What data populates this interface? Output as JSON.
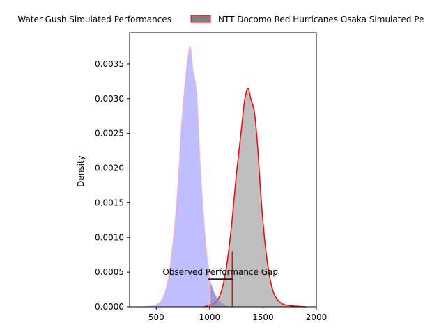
{
  "chart_data": {
    "type": "area",
    "title": "",
    "xlabel": "",
    "ylabel": "Density",
    "xlim": [
      250,
      2000
    ],
    "ylim": [
      0,
      0.00395
    ],
    "x_ticks": [
      500,
      1000,
      1500,
      2000
    ],
    "y_ticks": [
      0.0,
      0.0005,
      0.001,
      0.0015,
      0.002,
      0.0025,
      0.003,
      0.0035
    ],
    "x_tick_labels": [
      "500",
      "1000",
      "1500",
      "2000"
    ],
    "y_tick_labels": [
      "0.0000",
      "0.0005",
      "0.0010",
      "0.0015",
      "0.0020",
      "0.0025",
      "0.0030",
      "0.0035"
    ],
    "grid": false,
    "legend_position": "top-center",
    "series": [
      {
        "name": "Water Gush Simulated Performances",
        "legend_label": "Water Gush Simulated Performances",
        "fill_color": "#bfbfff",
        "line_color": "#ffb6c1",
        "points": [
          [
            350,
            0.0
          ],
          [
            450,
            1e-05
          ],
          [
            500,
            3e-05
          ],
          [
            550,
            0.0001
          ],
          [
            600,
            0.00032
          ],
          [
            650,
            0.00085
          ],
          [
            700,
            0.0017
          ],
          [
            730,
            0.0025
          ],
          [
            750,
            0.0029
          ],
          [
            780,
            0.0034
          ],
          [
            800,
            0.00365
          ],
          [
            812,
            0.00375
          ],
          [
            825,
            0.0037
          ],
          [
            845,
            0.0034
          ],
          [
            870,
            0.0032
          ],
          [
            890,
            0.0028
          ],
          [
            910,
            0.0021
          ],
          [
            935,
            0.0015
          ],
          [
            960,
            0.00098
          ],
          [
            985,
            0.0006
          ],
          [
            1010,
            0.00035
          ],
          [
            1050,
            0.00018
          ],
          [
            1100,
            7e-05
          ],
          [
            1150,
            2e-05
          ],
          [
            1200,
            0.0
          ]
        ]
      },
      {
        "name": "NTT Docomo Red Hurricanes Osaka Simulated Performances",
        "legend_label": "NTT Docomo Red Hurricanes Osaka Simulated Pe",
        "fill_color": "#bfbfbf",
        "line_color": "#ff0000",
        "points": [
          [
            950,
            0.0
          ],
          [
            1000,
            2e-05
          ],
          [
            1050,
            6e-05
          ],
          [
            1100,
            0.00018
          ],
          [
            1150,
            0.0005
          ],
          [
            1200,
            0.0011
          ],
          [
            1250,
            0.0019
          ],
          [
            1300,
            0.0026
          ],
          [
            1330,
            0.003
          ],
          [
            1360,
            0.00315
          ],
          [
            1385,
            0.003
          ],
          [
            1420,
            0.0028
          ],
          [
            1450,
            0.0023
          ],
          [
            1480,
            0.0016
          ],
          [
            1520,
            0.0009
          ],
          [
            1560,
            0.00045
          ],
          [
            1600,
            0.0002
          ],
          [
            1650,
            8e-05
          ],
          [
            1700,
            3e-05
          ],
          [
            1800,
            1e-05
          ],
          [
            1900,
            0.0
          ]
        ]
      }
    ],
    "markers": [
      {
        "type": "vertical",
        "x": 987,
        "y0": 0,
        "y1": 0.0006,
        "color": "#ffb6c1"
      },
      {
        "type": "vertical",
        "x": 1212,
        "y0": 0,
        "y1": 0.0008,
        "color": "#ff0000"
      },
      {
        "type": "horizontal",
        "x0": 987,
        "x1": 1212,
        "y": 0.0004,
        "color": "#000000"
      }
    ],
    "annotation": {
      "text": "Observed Performance Gap",
      "x": 1100,
      "y": 0.00046
    }
  }
}
